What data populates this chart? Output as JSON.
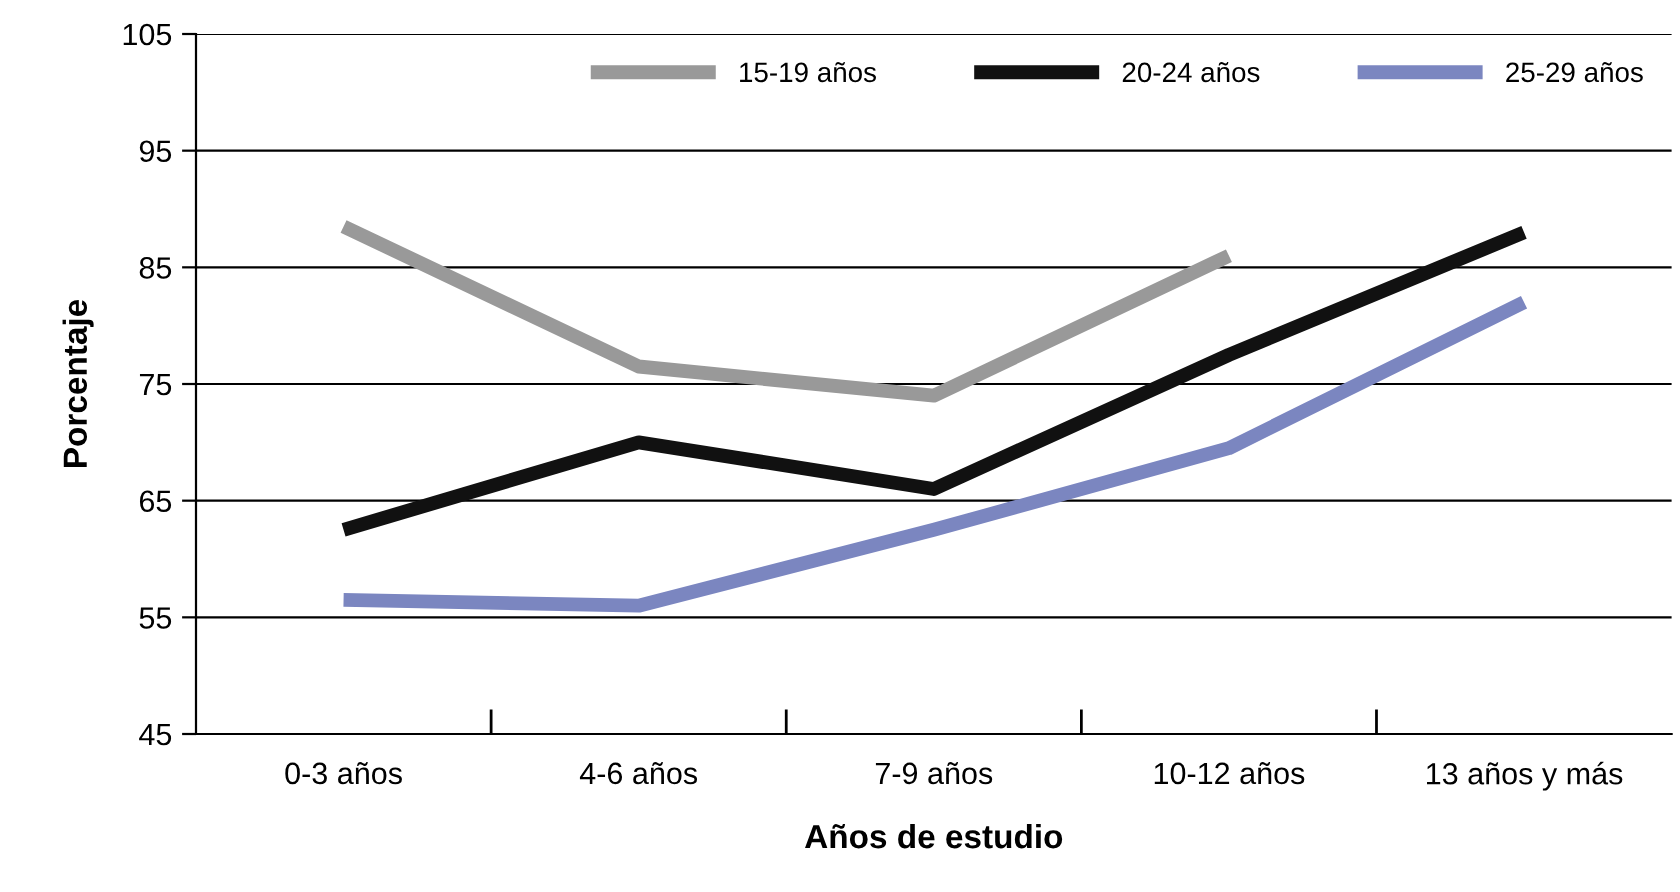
{
  "chart_data": {
    "type": "line",
    "xlabel": "Años de estudio",
    "ylabel": "Porcentaje",
    "categories": [
      "0-3 años",
      "4-6 años",
      "7-9 años",
      "10-12 años",
      "13 años y más"
    ],
    "series": [
      {
        "name": "15-19 años",
        "color": "#999999",
        "values": [
          88.5,
          76.5,
          74,
          86,
          null
        ]
      },
      {
        "name": "20-24 años",
        "color": "#111111",
        "values": [
          62.5,
          70,
          66,
          77.5,
          88
        ]
      },
      {
        "name": "25-29 años",
        "color": "#7b86c0",
        "values": [
          56.5,
          56,
          62.5,
          69.5,
          82
        ]
      }
    ],
    "ylim": [
      45,
      105
    ],
    "yticks": [
      45,
      55,
      65,
      75,
      85,
      95,
      105
    ],
    "grid": "y",
    "legend": "top right",
    "marker": "none",
    "line_style": "solid"
  }
}
